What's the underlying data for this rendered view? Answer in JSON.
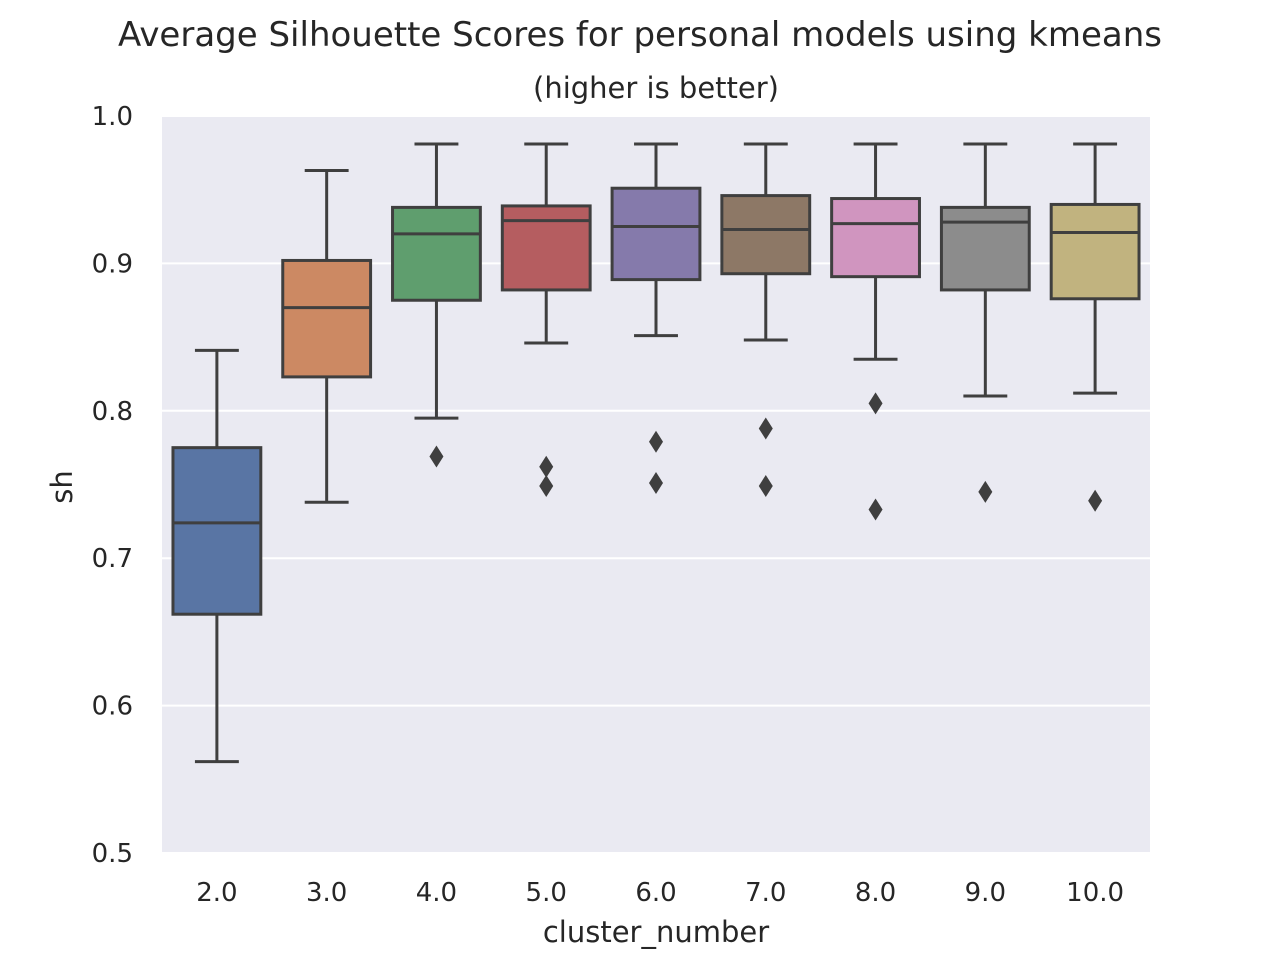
{
  "chart_data": {
    "type": "box",
    "title": "Average Silhouette Scores for personal models using kmeans",
    "subtitle": "(higher is better)",
    "xlabel": "cluster_number",
    "ylabel": "sh",
    "ylim": [
      0.5,
      1.0
    ],
    "yticks": [
      "0.5",
      "0.6",
      "0.7",
      "0.8",
      "0.9",
      "1.0"
    ],
    "grid": true,
    "categories": [
      "2.0",
      "3.0",
      "4.0",
      "5.0",
      "6.0",
      "7.0",
      "8.0",
      "9.0",
      "10.0"
    ],
    "boxes": [
      {
        "category": "2.0",
        "whisker_low": 0.562,
        "q1": 0.662,
        "median": 0.724,
        "q3": 0.775,
        "whisker_high": 0.841,
        "outliers": [],
        "color": "#5975a4"
      },
      {
        "category": "3.0",
        "whisker_low": 0.738,
        "q1": 0.823,
        "median": 0.87,
        "q3": 0.902,
        "whisker_high": 0.963,
        "outliers": [],
        "color": "#cc8963"
      },
      {
        "category": "4.0",
        "whisker_low": 0.795,
        "q1": 0.875,
        "median": 0.92,
        "q3": 0.938,
        "whisker_high": 0.981,
        "outliers": [
          0.769
        ],
        "color": "#5f9e6e"
      },
      {
        "category": "5.0",
        "whisker_low": 0.846,
        "q1": 0.882,
        "median": 0.929,
        "q3": 0.939,
        "whisker_high": 0.981,
        "outliers": [
          0.762,
          0.749
        ],
        "color": "#b55d60"
      },
      {
        "category": "6.0",
        "whisker_low": 0.851,
        "q1": 0.889,
        "median": 0.925,
        "q3": 0.951,
        "whisker_high": 0.981,
        "outliers": [
          0.779,
          0.751
        ],
        "color": "#857aab"
      },
      {
        "category": "7.0",
        "whisker_low": 0.848,
        "q1": 0.893,
        "median": 0.923,
        "q3": 0.946,
        "whisker_high": 0.981,
        "outliers": [
          0.788,
          0.749
        ],
        "color": "#8d7866"
      },
      {
        "category": "8.0",
        "whisker_low": 0.835,
        "q1": 0.891,
        "median": 0.927,
        "q3": 0.944,
        "whisker_high": 0.981,
        "outliers": [
          0.805,
          0.733
        ],
        "color": "#d095bf"
      },
      {
        "category": "9.0",
        "whisker_low": 0.81,
        "q1": 0.882,
        "median": 0.928,
        "q3": 0.938,
        "whisker_high": 0.981,
        "outliers": [
          0.745
        ],
        "color": "#8c8c8c"
      },
      {
        "category": "10.0",
        "whisker_low": 0.812,
        "q1": 0.876,
        "median": 0.921,
        "q3": 0.94,
        "whisker_high": 0.981,
        "outliers": [
          0.739
        ],
        "color": "#c1b37f"
      }
    ],
    "colors": {
      "plot_background": "#eaeaf2",
      "grid": "#ffffff",
      "line": "#3f3f3f"
    }
  }
}
